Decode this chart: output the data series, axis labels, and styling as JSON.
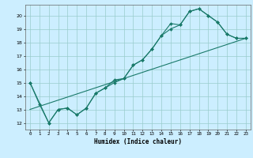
{
  "title": "",
  "xlabel": "Humidex (Indice chaleur)",
  "bg_color": "#cceeff",
  "grid_color": "#99cccc",
  "line_color": "#1a7a6a",
  "xlim": [
    -0.5,
    23.5
  ],
  "ylim": [
    11.5,
    20.8
  ],
  "yticks": [
    12,
    13,
    14,
    15,
    16,
    17,
    18,
    19,
    20
  ],
  "xticks": [
    0,
    1,
    2,
    3,
    4,
    5,
    6,
    7,
    8,
    9,
    10,
    11,
    12,
    13,
    14,
    15,
    16,
    17,
    18,
    19,
    20,
    21,
    22,
    23
  ],
  "line1_x": [
    0,
    1,
    2,
    3,
    4,
    5,
    6,
    7,
    8,
    9,
    10,
    11,
    12,
    13,
    14,
    15,
    16,
    17,
    18,
    19,
    20,
    21,
    22,
    23
  ],
  "line1_y": [
    15.0,
    13.4,
    12.0,
    13.0,
    13.1,
    12.6,
    13.1,
    14.2,
    14.6,
    15.2,
    15.3,
    16.3,
    16.7,
    17.5,
    18.5,
    19.4,
    19.3,
    20.3,
    20.5,
    20.0,
    19.5,
    18.6,
    18.3,
    18.3
  ],
  "line2_x": [
    0,
    2,
    3,
    4,
    5,
    6,
    7,
    8,
    9,
    10,
    11,
    12,
    13,
    14,
    15,
    16,
    17,
    18,
    19,
    20,
    21,
    22,
    23
  ],
  "line2_y": [
    15.0,
    12.0,
    13.0,
    13.1,
    12.6,
    13.1,
    14.2,
    14.6,
    15.0,
    15.3,
    16.3,
    16.7,
    17.5,
    18.5,
    19.0,
    19.3,
    20.3,
    20.5,
    20.0,
    19.5,
    18.6,
    18.3,
    18.3
  ],
  "line3_x": [
    0,
    23
  ],
  "line3_y": [
    13.0,
    18.3
  ]
}
